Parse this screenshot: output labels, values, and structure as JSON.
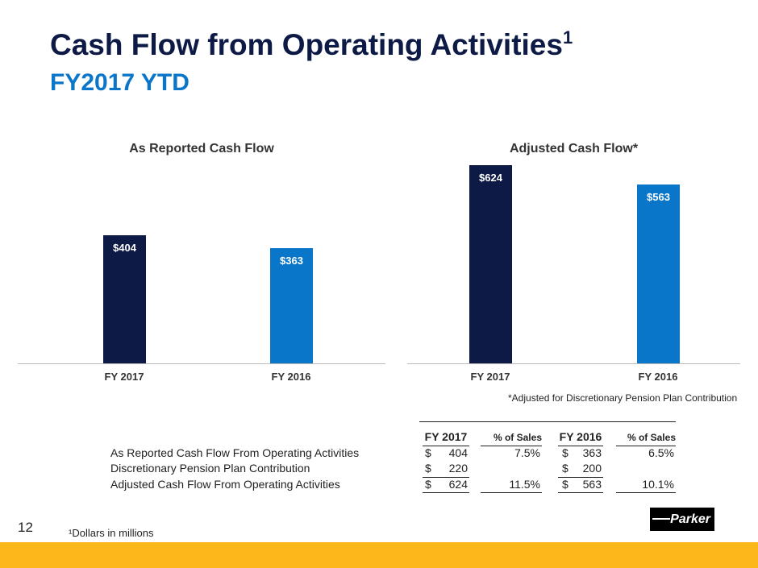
{
  "header": {
    "title": "Cash Flow from Operating Activities",
    "title_sup": "1",
    "subtitle": "FY2017 YTD"
  },
  "chart_data": [
    {
      "type": "bar",
      "title": "As Reported Cash Flow",
      "categories": [
        "FY 2017",
        "FY 2016"
      ],
      "values": [
        404,
        363
      ],
      "data_labels": [
        "$404",
        "$363"
      ],
      "colors": [
        "#0d1a45",
        "#0a76c9"
      ],
      "ylim": [
        0,
        624
      ]
    },
    {
      "type": "bar",
      "title": "Adjusted Cash Flow*",
      "categories": [
        "FY 2017",
        "FY 2016"
      ],
      "values": [
        624,
        563
      ],
      "data_labels": [
        "$624",
        "$563"
      ],
      "colors": [
        "#0d1a45",
        "#0a76c9"
      ],
      "ylim": [
        0,
        624
      ]
    }
  ],
  "note": "*Adjusted for Discretionary Pension Plan Contribution",
  "table": {
    "headers": [
      "FY 2017",
      "% of Sales",
      "FY 2016",
      "% of Sales"
    ],
    "rows": [
      {
        "label": "As Reported Cash Flow From Operating Activities",
        "c1": "$",
        "v1": "404",
        "p1": "7.5%",
        "c2": "$",
        "v2": "363",
        "p2": "6.5%"
      },
      {
        "label": "Discretionary Pension Plan Contribution",
        "c1": "$",
        "v1": "220",
        "p1": "",
        "c2": "$",
        "v2": "200",
        "p2": ""
      },
      {
        "label": "Adjusted Cash Flow From Operating Activities",
        "c1": "$",
        "v1": "624",
        "p1": "11.5%",
        "c2": "$",
        "v2": "563",
        "p2": "10.1%"
      }
    ]
  },
  "footer": {
    "page_number": "12",
    "footnote": "¹Dollars in millions",
    "logo": "Parker"
  },
  "colors": {
    "band": "#fdb71a",
    "navy": "#0d1a45",
    "blue": "#0a76c9"
  }
}
